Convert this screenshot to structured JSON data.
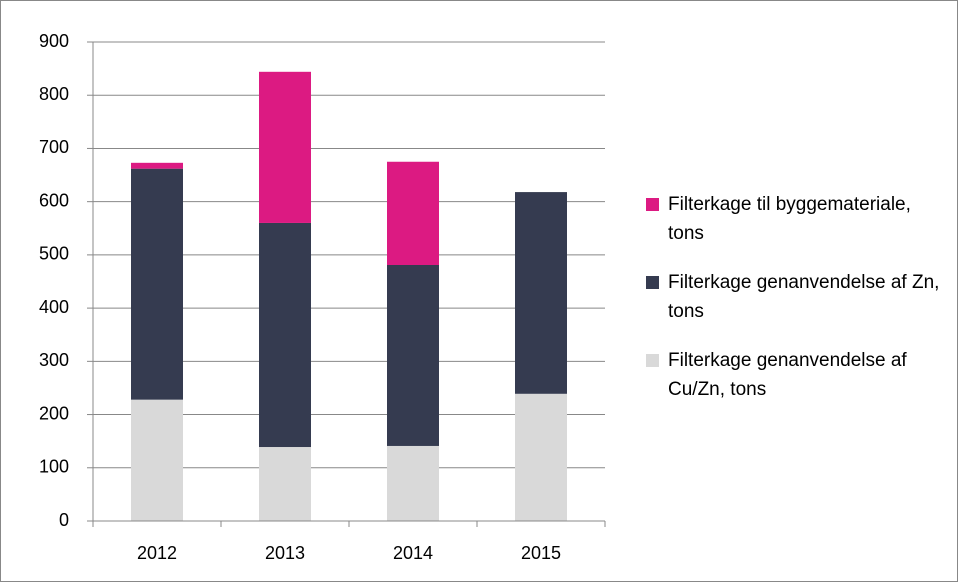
{
  "chart_data": {
    "type": "stacked_bar",
    "categories": [
      "2012",
      "2013",
      "2014",
      "2015"
    ],
    "series": [
      {
        "name": "Filterkage genanvendelse af Cu/Zn, tons",
        "color": "#d9d9d9",
        "values": [
          228,
          139,
          141,
          239
        ]
      },
      {
        "name": "Filterkage genanvendelse af Zn, tons",
        "color": "#353b50",
        "values": [
          434,
          421,
          340,
          379
        ]
      },
      {
        "name": "Filterkage til byggemateriale, tons",
        "color": "#dc1a82",
        "values": [
          11,
          284,
          194,
          0
        ]
      }
    ],
    "ylim": [
      0,
      900
    ],
    "yticks": [
      0,
      100,
      200,
      300,
      400,
      500,
      600,
      700,
      800,
      900
    ],
    "grid": true,
    "legend": "right"
  }
}
